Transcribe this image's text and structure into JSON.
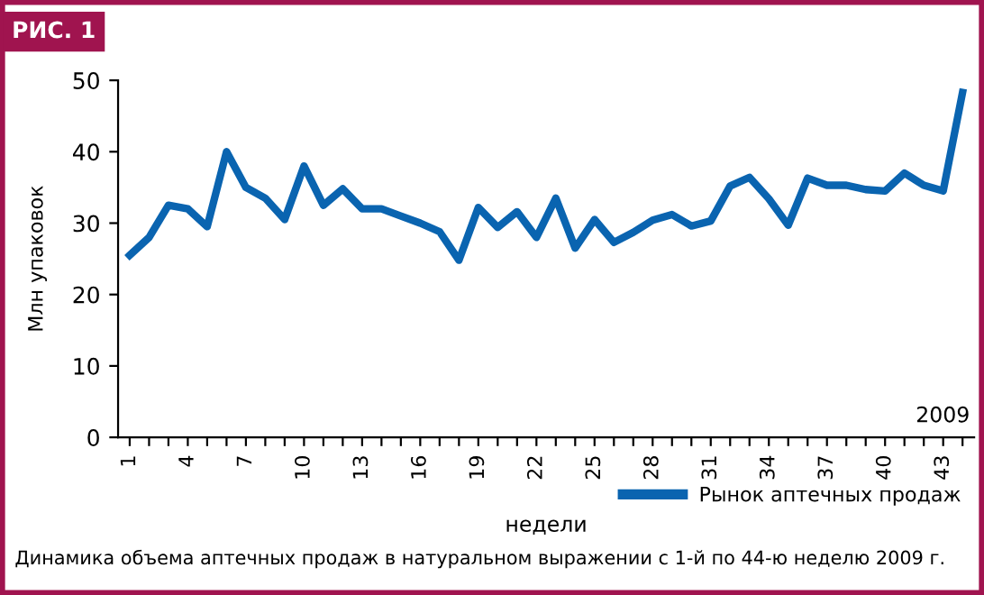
{
  "chart_data": {
    "type": "line",
    "categories": [
      "1",
      null,
      null,
      "4",
      null,
      null,
      "7",
      null,
      null,
      "10",
      null,
      null,
      "13",
      null,
      null,
      "16",
      null,
      null,
      "19",
      null,
      null,
      "22",
      null,
      null,
      "25",
      null,
      null,
      "28",
      null,
      null,
      "31",
      null,
      null,
      "34",
      null,
      null,
      "37",
      null,
      null,
      "40",
      null,
      null,
      "43",
      null
    ],
    "series": [
      {
        "name": "Рынок аптечных продаж",
        "color": "#0a64b0",
        "values": [
          25.5,
          28,
          32.5,
          32,
          29.5,
          40,
          35,
          33.5,
          30.5,
          38,
          32.5,
          34.8,
          32,
          32,
          31,
          30,
          28.8,
          24.8,
          32.2,
          29.4,
          31.6,
          28,
          33.5,
          26.5,
          30.5,
          27.3,
          28.7,
          30.4,
          31.2,
          29.6,
          30.3,
          35.2,
          36.4,
          33.4,
          29.7,
          36.3,
          35.3,
          35.3,
          34.7,
          34.5,
          37,
          35.3,
          34.5,
          48.3
        ]
      }
    ],
    "xlabel": "недели",
    "ylabel": "Млн упаковок",
    "ylim": [
      0,
      50
    ],
    "yticks": [
      0,
      10,
      20,
      30,
      40,
      50
    ],
    "grid": false,
    "legend": "bottom right",
    "marker": "none",
    "line_style": "solid",
    "annotations": [
      "РИС. 1",
      "2009",
      "Динамика объема аптечных продаж в натуральном выражении с 1-й по 44-ю неделю 2009 г."
    ]
  }
}
